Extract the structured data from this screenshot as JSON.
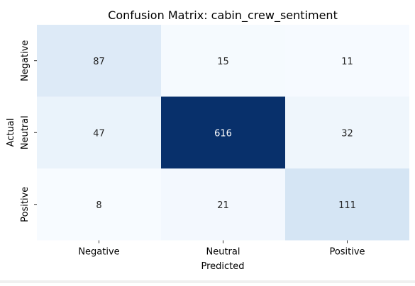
{
  "chart_data": {
    "type": "heatmap",
    "title": "Confusion Matrix: cabin_crew_sentiment",
    "xlabel": "Predicted",
    "ylabel": "Actual",
    "x_categories": [
      "Negative",
      "Neutral",
      "Positive"
    ],
    "y_categories": [
      "Negative",
      "Neutral",
      "Positive"
    ],
    "values": [
      [
        87,
        15,
        11
      ],
      [
        47,
        616,
        32
      ],
      [
        8,
        21,
        111
      ]
    ],
    "colormap": "Blues",
    "colorbar": false,
    "annotations": true
  }
}
